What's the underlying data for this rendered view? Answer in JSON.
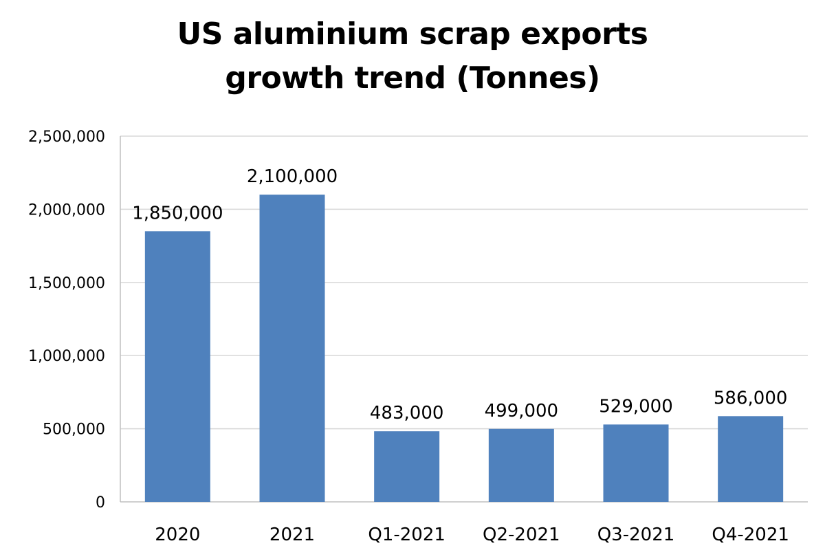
{
  "chart_data": {
    "type": "bar",
    "title_lines": [
      "US aluminium scrap exports",
      "growth trend (Tonnes)"
    ],
    "categories": [
      "2020",
      "2021",
      "Q1-2021",
      "Q2-2021",
      "Q3-2021",
      "Q4-2021"
    ],
    "values": [
      1850000,
      2100000,
      483000,
      499000,
      529000,
      586000
    ],
    "data_labels": [
      "1,850,000",
      "2,100,000",
      "483,000",
      "499,000",
      "529,000",
      "586,000"
    ],
    "xlabel": "",
    "ylabel": "",
    "ylim": [
      0,
      2500000
    ],
    "yticks": [
      0,
      500000,
      1000000,
      1500000,
      2000000,
      2500000
    ],
    "ytick_labels": [
      "0",
      "500,000",
      "1,000,000",
      "1,500,000",
      "2,000,000",
      "2,500,000"
    ],
    "grid": true,
    "legend": "none",
    "colors": {
      "bar": "#4f81bd",
      "grid": "#d9d9d9",
      "axis": "#bfbfbf"
    }
  }
}
